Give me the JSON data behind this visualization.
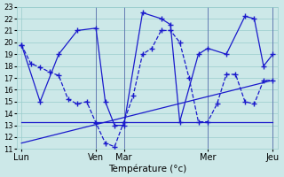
{
  "xlabel": "Température (°c)",
  "ylim": [
    11,
    23
  ],
  "yticks": [
    11,
    12,
    13,
    14,
    15,
    16,
    17,
    18,
    19,
    20,
    21,
    22,
    23
  ],
  "bg_color": "#cce8e8",
  "grid_color": "#99cccc",
  "line_color": "#1a1acc",
  "day_labels": [
    "Lun",
    "Ven",
    "Mar",
    "Mer",
    "Jeu"
  ],
  "day_positions": [
    0,
    8,
    11,
    20,
    27
  ],
  "vline_positions": [
    8,
    11,
    20,
    27
  ],
  "xlim": [
    -0.5,
    27.5
  ],
  "series1_x": [
    0,
    1,
    2,
    3,
    4,
    5,
    6,
    7,
    8,
    9,
    10,
    11,
    12,
    13,
    14,
    15,
    16,
    17,
    18,
    19,
    20,
    21,
    22,
    23,
    24,
    25,
    26,
    27
  ],
  "series1_y": [
    19.8,
    18.2,
    17.9,
    17.5,
    17.2,
    15.2,
    14.8,
    15.0,
    13.2,
    11.5,
    11.2,
    13.3,
    15.5,
    19.0,
    19.5,
    21.0,
    21.0,
    20.0,
    17.0,
    13.3,
    13.3,
    14.8,
    17.3,
    17.3,
    15.0,
    14.8,
    16.8,
    16.8
  ],
  "series2_x": [
    0,
    2,
    4,
    6,
    8,
    9,
    10,
    11,
    13,
    15,
    16,
    17,
    19,
    20,
    22,
    24,
    25,
    26,
    27
  ],
  "series2_y": [
    19.8,
    15.0,
    19.0,
    21.0,
    21.2,
    15.0,
    13.0,
    13.0,
    22.5,
    22.0,
    21.5,
    13.3,
    19.0,
    19.5,
    19.0,
    22.2,
    22.0,
    18.0,
    19.0
  ],
  "series3_x": [
    0,
    27
  ],
  "series3_y": [
    13.3,
    13.3
  ],
  "series4_x": [
    0,
    27
  ],
  "series4_y": [
    11.5,
    16.8
  ]
}
